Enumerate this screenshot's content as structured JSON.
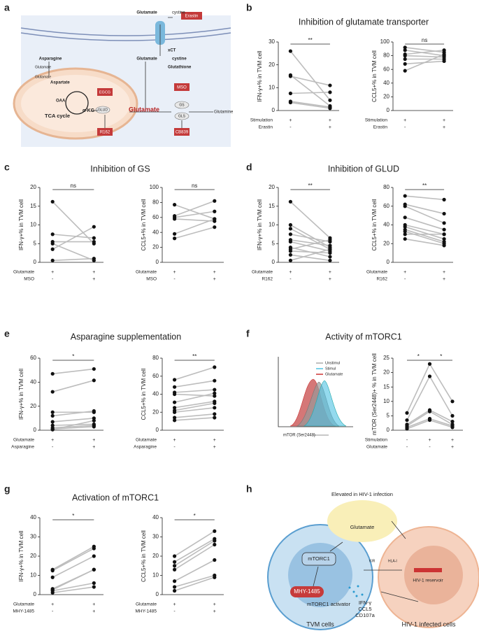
{
  "panels": {
    "a": {
      "letter": "a"
    },
    "b": {
      "letter": "b",
      "title": "Inhibition of glutamate transporter"
    },
    "c": {
      "letter": "c",
      "title": "Inhibition of GS"
    },
    "d": {
      "letter": "d",
      "title": "Inhibition of GLUD"
    },
    "e": {
      "letter": "e",
      "title": "Asparagine supplementation"
    },
    "f": {
      "letter": "f",
      "title": "Activity of mTORC1"
    },
    "g": {
      "letter": "g",
      "title": "Activation of mTORC1"
    },
    "h": {
      "letter": "h"
    }
  },
  "diagram_a": {
    "labels": [
      "Glutamate",
      "cystine",
      "Erastin",
      "xCT",
      "Glutamate",
      "cystine",
      "Glutathione",
      "Asparagine",
      "Glutamate",
      "Glutamate",
      "Aspartate",
      "OAA",
      "TCA cycle",
      "α-KG",
      "EGCG",
      "GLUD",
      "R162",
      "Glutamate",
      "MSO",
      "GS",
      "GLS",
      "Glutamine",
      "CB839"
    ]
  },
  "histogram_f": {
    "legend": [
      "Unstimul",
      "Stimul",
      "Glutamate"
    ],
    "xlabel": "mTOR (Ser2448)"
  },
  "diagram_h": {
    "labels": [
      "Elevated in HIV-1 infection",
      "Glutamate",
      "mTORC1",
      "KIR",
      "HLA-I",
      "HIV-1 reservoir",
      "MHY-1485",
      "mTORC1 activator",
      "IFN-γ",
      "CCL5",
      "CD107a",
      "TVM cells",
      "HIV-1 infected cells"
    ]
  },
  "chart_data": [
    {
      "type": "paired",
      "ylabel": "IFN-γ+% in TVM cell",
      "ylim": [
        0,
        30
      ],
      "yticks": [
        0,
        10,
        20,
        30
      ],
      "groups": [
        [
          26,
          15.5,
          15,
          7.5,
          4,
          3.5
        ],
        [
          4.5,
          2,
          11,
          8,
          1.5,
          1
        ]
      ],
      "rows": [
        {
          "label": "Stimulation",
          "marks": [
            "+",
            "+"
          ]
        },
        {
          "label": "Erastin",
          "marks": [
            "-",
            "+"
          ]
        }
      ],
      "significance": [
        "**"
      ]
    },
    {
      "type": "paired",
      "ylabel": "CCL5+% in TVM cell",
      "ylim": [
        0,
        100
      ],
      "yticks": [
        0,
        20,
        40,
        60,
        80,
        100
      ],
      "groups": [
        [
          92,
          88,
          82,
          80,
          75,
          68,
          58
        ],
        [
          85,
          80,
          88,
          78,
          75,
          72,
          82
        ]
      ],
      "rows": [
        {
          "label": "Stimulation",
          "marks": [
            "+",
            "+"
          ]
        },
        {
          "label": "Erastin",
          "marks": [
            "-",
            "+"
          ]
        }
      ],
      "significance": [
        "ns"
      ]
    },
    {
      "type": "paired",
      "ylabel": "IFN-γ+% in TVM cell",
      "ylim": [
        0,
        20
      ],
      "yticks": [
        0,
        5,
        10,
        15,
        20
      ],
      "groups": [
        [
          16.2,
          7.5,
          5.5,
          5,
          3.5,
          0.5
        ],
        [
          5,
          6.5,
          5.5,
          0.5,
          9.5,
          1
        ]
      ],
      "rows": [
        {
          "label": "Glutamate",
          "marks": [
            "+",
            "+"
          ]
        },
        {
          "label": "MSO",
          "marks": [
            "-",
            "+"
          ]
        }
      ],
      "significance": [
        "ns"
      ]
    },
    {
      "type": "paired",
      "ylabel": "CCL5+% in TVM cell",
      "ylim": [
        0,
        100
      ],
      "yticks": [
        0,
        20,
        40,
        60,
        80,
        100
      ],
      "groups": [
        [
          77,
          62,
          60,
          58,
          38,
          32
        ],
        [
          58,
          82,
          68,
          55,
          58,
          47
        ]
      ],
      "rows": [
        {
          "label": "Glutamate",
          "marks": [
            "+",
            "+"
          ]
        },
        {
          "label": "MSO",
          "marks": [
            "-",
            "+"
          ]
        }
      ],
      "significance": [
        "ns"
      ]
    },
    {
      "type": "paired",
      "ylabel": "IFN-γ+% in TVM cell",
      "ylim": [
        0,
        20
      ],
      "yticks": [
        0,
        5,
        10,
        15,
        20
      ],
      "groups": [
        [
          16.2,
          10,
          9,
          7.5,
          6,
          5.5,
          4,
          3.5,
          3,
          2,
          0.5
        ],
        [
          6.5,
          4,
          3.5,
          5.5,
          4.5,
          3,
          1.5,
          6,
          2.5,
          0.5,
          3.5
        ]
      ],
      "rows": [
        {
          "label": "Glutamate",
          "marks": [
            "+",
            "+"
          ]
        },
        {
          "label": "R162",
          "marks": [
            "-",
            "+"
          ]
        }
      ],
      "significance": [
        "**"
      ]
    },
    {
      "type": "paired",
      "ylabel": "CCL5+% in TVM cell",
      "ylim": [
        0,
        80
      ],
      "yticks": [
        0,
        20,
        40,
        60,
        80
      ],
      "groups": [
        [
          71,
          62,
          60,
          48,
          40,
          38,
          35,
          33,
          30,
          25
        ],
        [
          67,
          52,
          42,
          35,
          30,
          25,
          22,
          20,
          30,
          18
        ]
      ],
      "rows": [
        {
          "label": "Glutamate",
          "marks": [
            "+",
            "+"
          ]
        },
        {
          "label": "R162",
          "marks": [
            "-",
            "+"
          ]
        }
      ],
      "significance": [
        "**"
      ]
    },
    {
      "type": "paired",
      "ylabel": "IFN-γ+% in TVM cell",
      "ylim": [
        0,
        60
      ],
      "yticks": [
        0,
        20,
        40,
        60
      ],
      "groups": [
        [
          47,
          32,
          15,
          12,
          7,
          4,
          2,
          1,
          0.5
        ],
        [
          51,
          41.5,
          15,
          16,
          10,
          5,
          4,
          3,
          8
        ]
      ],
      "rows": [
        {
          "label": "Glutamate",
          "marks": [
            "+",
            "+"
          ]
        },
        {
          "label": "Asparagine",
          "marks": [
            "-",
            "+"
          ]
        }
      ],
      "significance": [
        "*"
      ]
    },
    {
      "type": "paired",
      "ylabel": "CCL5+% in TVM cell",
      "ylim": [
        0,
        80
      ],
      "yticks": [
        0,
        20,
        40,
        60,
        80
      ],
      "groups": [
        [
          56,
          48,
          42,
          40,
          31,
          25,
          22,
          20,
          14,
          11
        ],
        [
          70,
          55,
          45,
          38,
          41,
          32,
          30,
          25,
          18,
          14
        ]
      ],
      "rows": [
        {
          "label": "Glutamate",
          "marks": [
            "+",
            "+"
          ]
        },
        {
          "label": "Asparagine",
          "marks": [
            "-",
            "+"
          ]
        }
      ],
      "significance": [
        "**"
      ]
    },
    {
      "type": "paired",
      "ylabel": "mTOR (Ser2448)+ % in TVM cell",
      "ylim": [
        0,
        25
      ],
      "yticks": [
        0,
        5,
        10,
        15,
        20,
        25
      ],
      "groups": [
        [
          6,
          3.5,
          2,
          1.5,
          1,
          0.5
        ],
        [
          23,
          18.7,
          7,
          6.5,
          4,
          3.5
        ],
        [
          10,
          5,
          3,
          2,
          1.5,
          1
        ]
      ],
      "rows": [
        {
          "label": "Stimulation",
          "marks": [
            "-",
            "+",
            "+"
          ]
        },
        {
          "label": "Glutamate",
          "marks": [
            "-",
            "-",
            "+"
          ]
        }
      ],
      "significance": [
        "*",
        "*"
      ]
    },
    {
      "type": "paired",
      "ylabel": "IFN-γ+% in TVM cell",
      "ylim": [
        0,
        40
      ],
      "yticks": [
        0,
        10,
        20,
        30,
        40
      ],
      "groups": [
        [
          13,
          12.5,
          9,
          3,
          2.5,
          2,
          1
        ],
        [
          25,
          24,
          20,
          13,
          13,
          6,
          4
        ]
      ],
      "rows": [
        {
          "label": "Glutamate",
          "marks": [
            "+",
            "+"
          ]
        },
        {
          "label": "MHY-1485",
          "marks": [
            "-",
            "+"
          ]
        }
      ],
      "significance": [
        "*"
      ]
    },
    {
      "type": "paired",
      "ylabel": "CCL5+% in TVM cell",
      "ylim": [
        0,
        40
      ],
      "yticks": [
        0,
        10,
        20,
        30,
        40
      ],
      "groups": [
        [
          20,
          17,
          15,
          13,
          7,
          4,
          2
        ],
        [
          33,
          29,
          28,
          26,
          18,
          10,
          9
        ]
      ],
      "rows": [
        {
          "label": "Glutamate",
          "marks": [
            "+",
            "+"
          ]
        },
        {
          "label": "MHY-1485",
          "marks": [
            "-",
            "+"
          ]
        }
      ],
      "significance": [
        "*"
      ]
    }
  ]
}
